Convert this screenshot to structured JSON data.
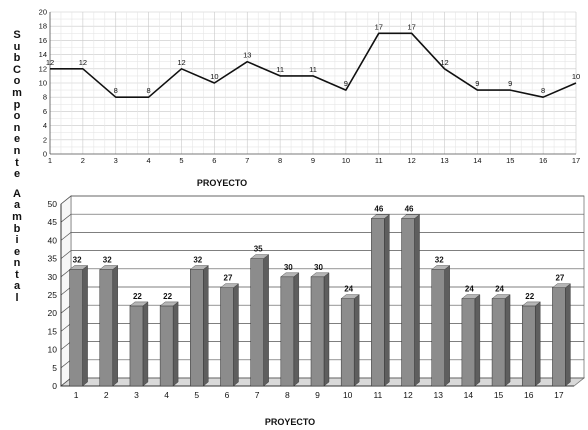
{
  "ylabel": "SubComponente Aambiental",
  "chart_data": [
    {
      "type": "line",
      "xlabel": "PROYECTO",
      "ylabel": "SubComponente Aambiental",
      "x": [
        1,
        2,
        3,
        4,
        5,
        6,
        7,
        8,
        9,
        10,
        11,
        12,
        13,
        14,
        15,
        16,
        17
      ],
      "series": [
        {
          "values": [
            12,
            12,
            8,
            8,
            12,
            10,
            13,
            11,
            11,
            9,
            17,
            17,
            12,
            9,
            9,
            8,
            10
          ]
        }
      ],
      "ylim": [
        0,
        20
      ],
      "yticks": [
        0,
        2,
        4,
        6,
        8,
        10,
        12,
        14,
        16,
        18,
        20
      ],
      "grid": true,
      "color": "#111111"
    },
    {
      "type": "bar",
      "xlabel": "PROYECTO",
      "ylabel": "SubComponente Aambiental",
      "categories": [
        "1",
        "2",
        "3",
        "4",
        "5",
        "6",
        "7",
        "8",
        "9",
        "10",
        "11",
        "12",
        "13",
        "14",
        "15",
        "16",
        "17"
      ],
      "values": [
        32,
        32,
        22,
        22,
        32,
        27,
        35,
        30,
        30,
        24,
        46,
        46,
        32,
        24,
        24,
        22,
        27
      ],
      "ylim": [
        0,
        50
      ],
      "yticks": [
        0,
        5,
        10,
        15,
        20,
        25,
        30,
        35,
        40,
        45,
        50
      ],
      "grid": true,
      "style": "3d",
      "color": "#8c8c8c"
    }
  ]
}
